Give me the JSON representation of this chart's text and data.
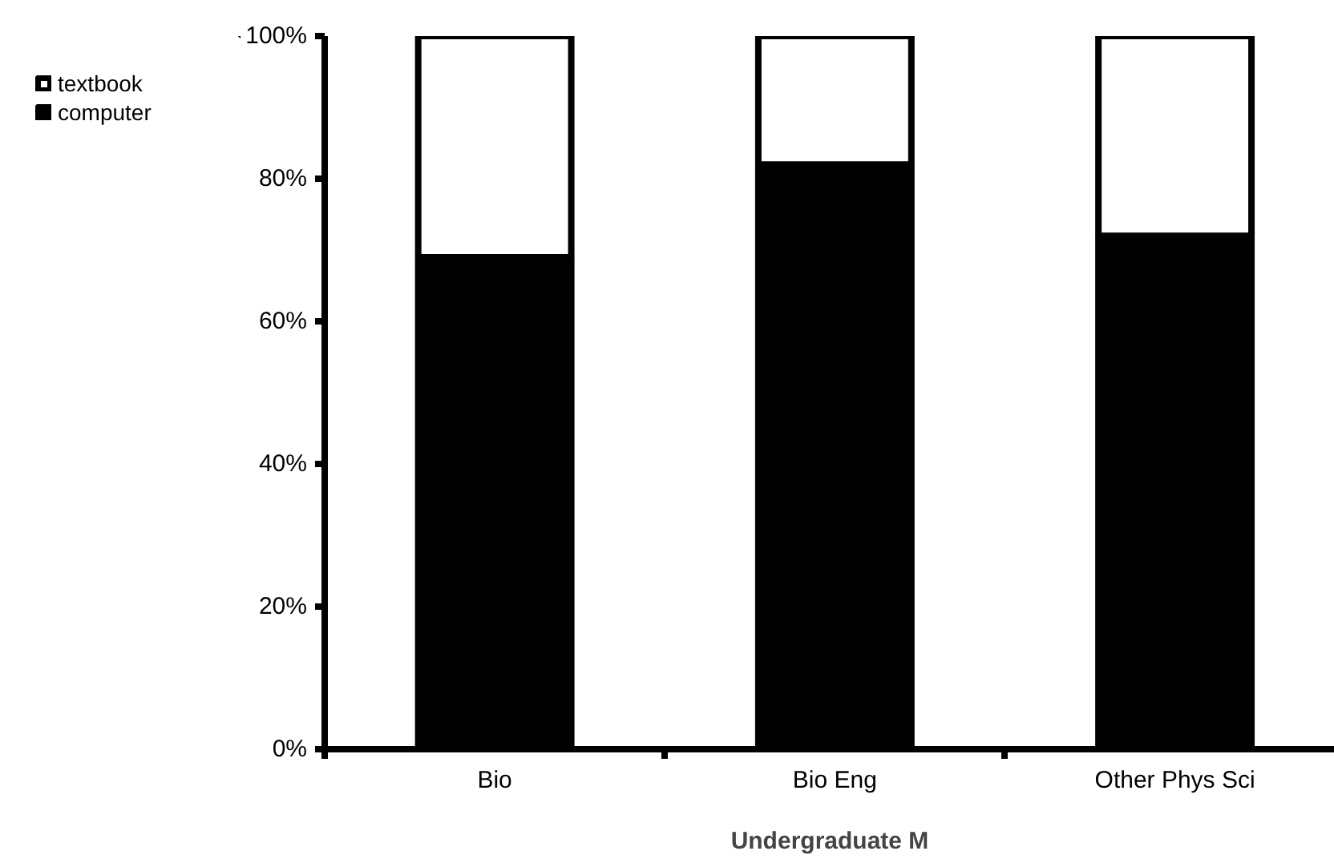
{
  "chart_data": {
    "type": "bar",
    "stacked": true,
    "xlabel": "Undergraduate M",
    "categories": [
      "Bio",
      "Bio Eng",
      "Other Phys Sci"
    ],
    "series": [
      {
        "name": "computer",
        "color": "#000000",
        "values": [
          69,
          82,
          72
        ]
      },
      {
        "name": "textbook",
        "color": "#ffffff",
        "values": [
          31,
          18,
          28
        ]
      }
    ],
    "ylim": [
      0,
      100
    ],
    "yticks": [
      {
        "value": 0,
        "label": "0%"
      },
      {
        "value": 20,
        "label": "20%"
      },
      {
        "value": 40,
        "label": "40%"
      },
      {
        "value": 60,
        "label": "60%"
      },
      {
        "value": 80,
        "label": "80%"
      },
      {
        "value": 100,
        "label": "100%"
      }
    ],
    "grid": false,
    "legend": "top left"
  }
}
